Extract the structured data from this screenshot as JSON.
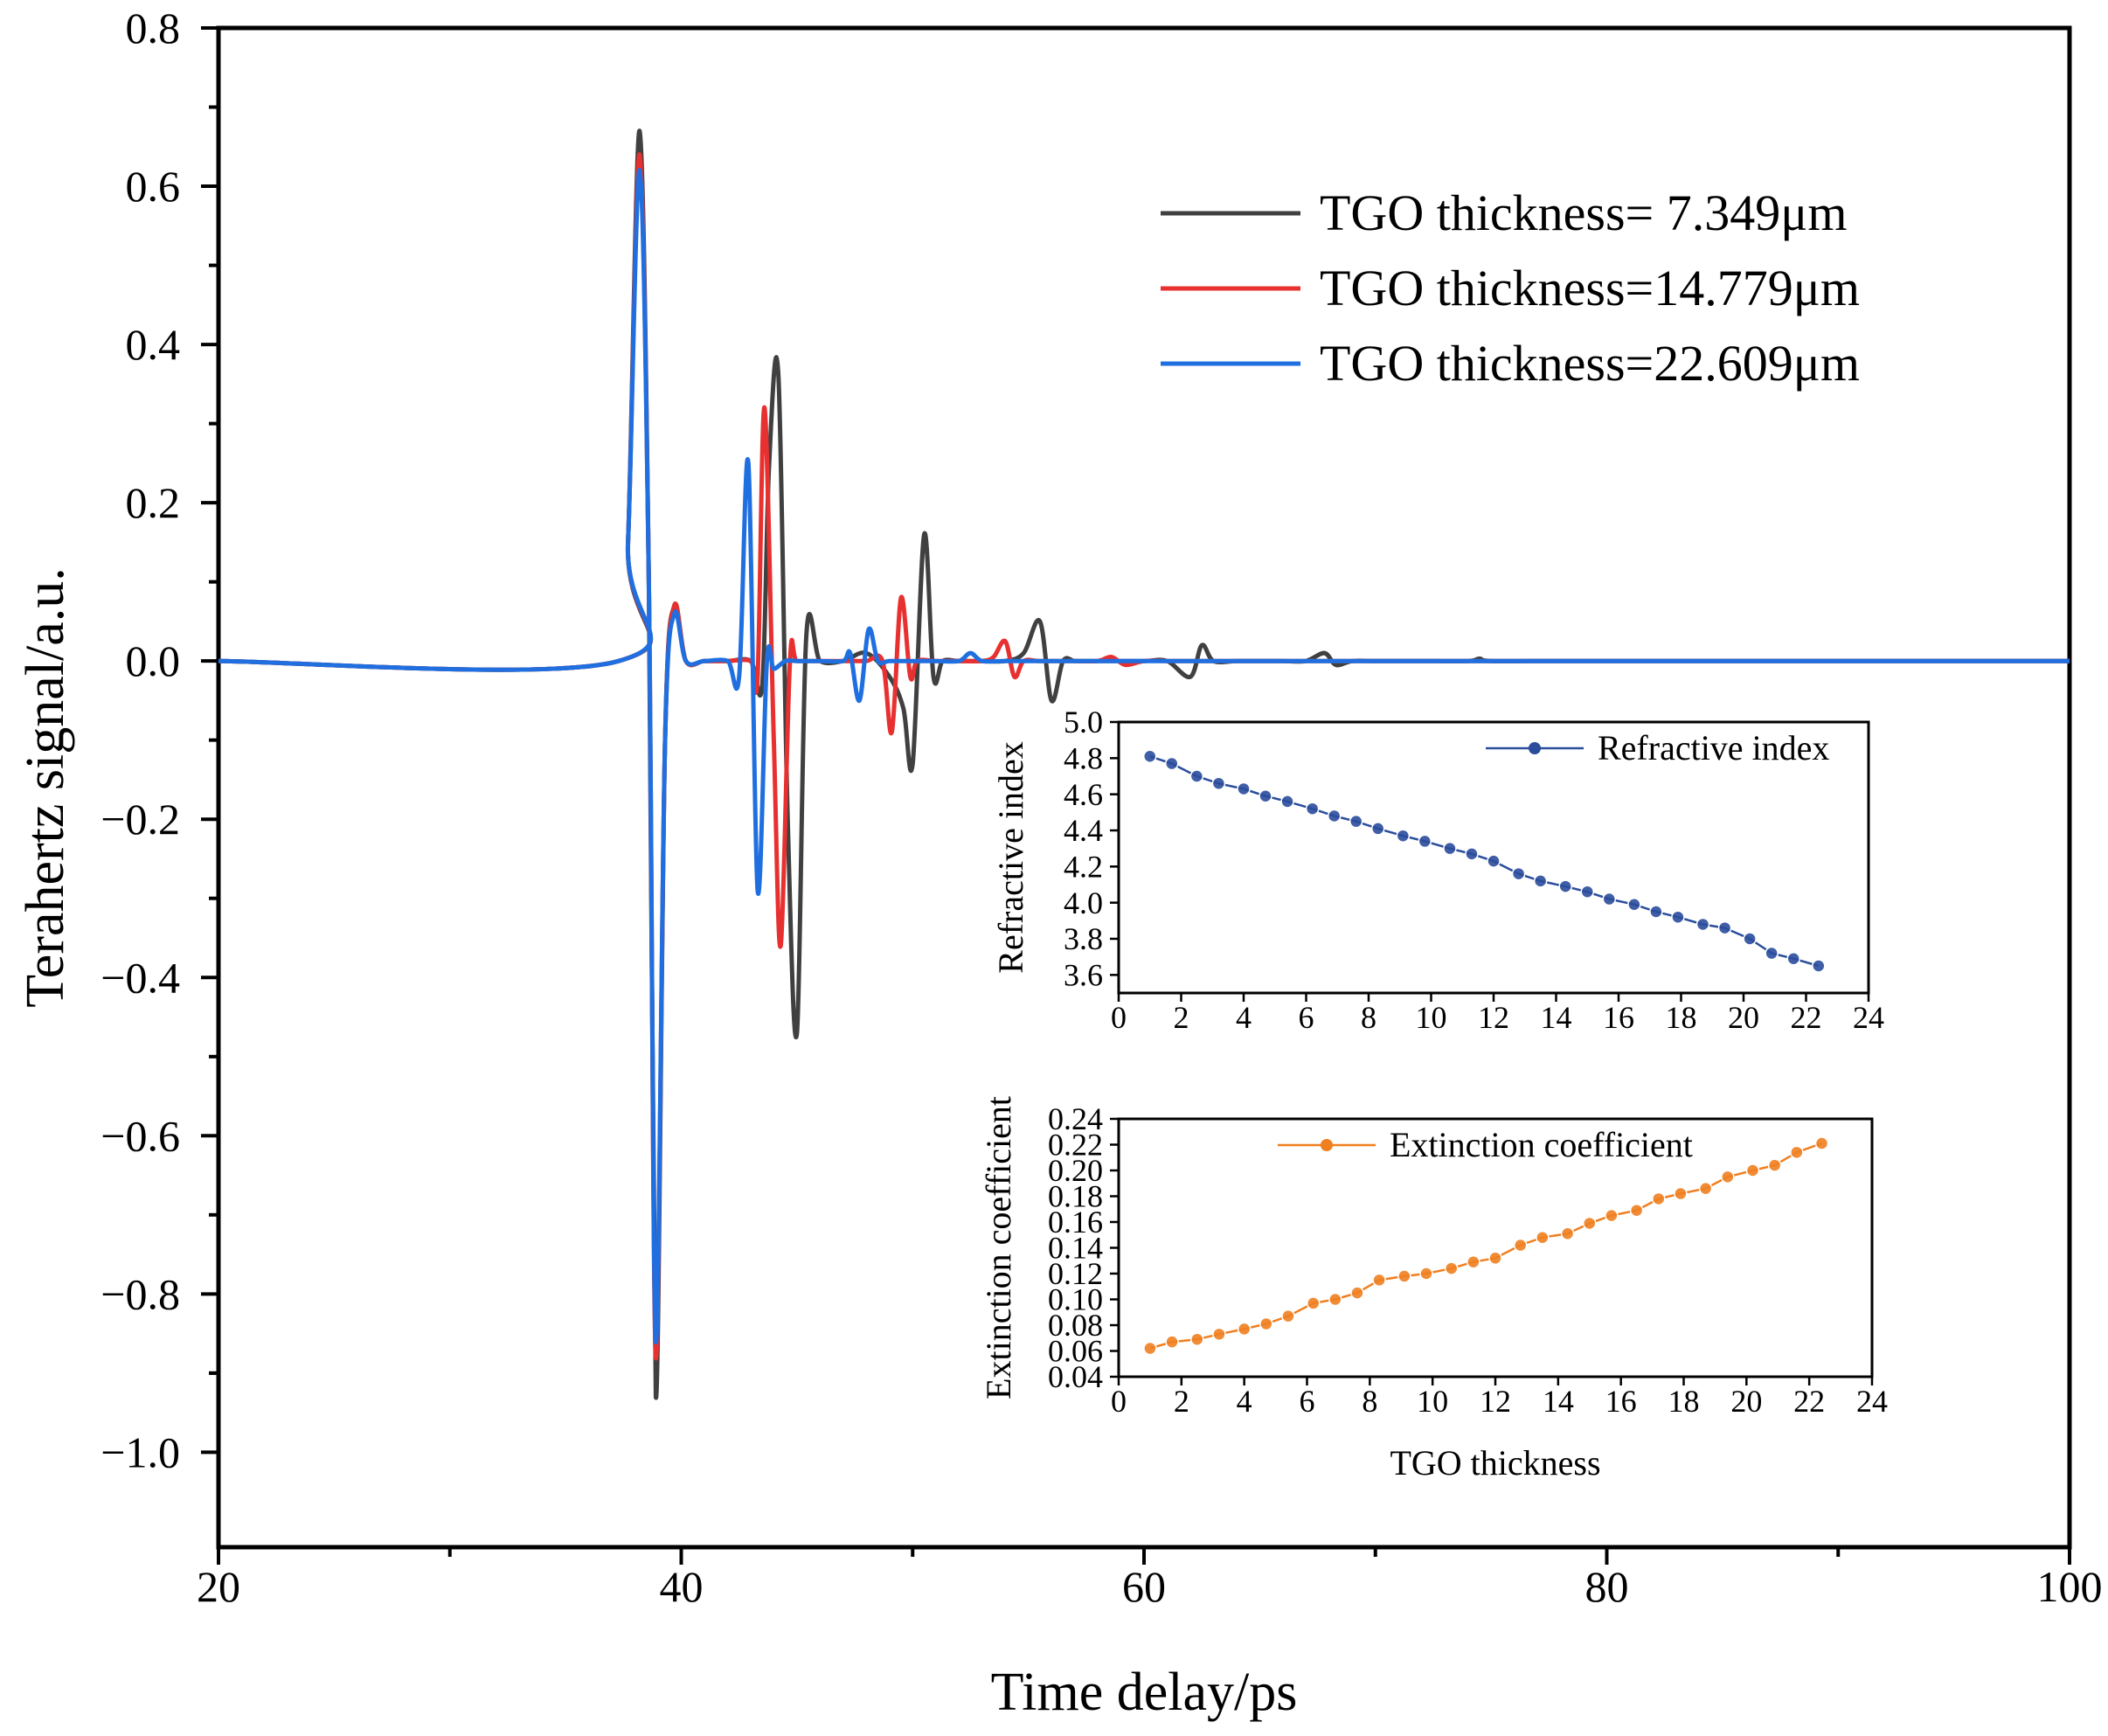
{
  "chart_data": [
    {
      "type": "line",
      "title": "",
      "xlabel": "Time delay/ps",
      "ylabel": "Terahertz signal/a.u.",
      "xlim": [
        20,
        100
      ],
      "ylim": [
        -1.12,
        0.8
      ],
      "x_ticks": [
        20,
        40,
        60,
        80,
        100
      ],
      "y_ticks": [
        0.8,
        0.6,
        0.4,
        0.2,
        0.0,
        -0.2,
        -0.4,
        -0.6,
        -0.8,
        -1.0
      ],
      "y_tick_labels": [
        "0.8",
        "0.6",
        "0.4",
        "0.2",
        "0.0",
        "−0.2",
        "−0.4",
        "−0.6",
        "−0.8",
        "−1.0"
      ],
      "grid": false,
      "legend_position": "top-right",
      "series": [
        {
          "name": "TGO thickness=  7.349μm",
          "color": "#404040",
          "x": [
            20,
            37.3,
            37.7,
            38.2,
            38.6,
            38.9,
            39.3,
            39.7,
            40.2,
            41.0,
            42.0,
            43.0,
            43.5,
            43.8,
            44.2,
            44.6,
            45.0,
            45.4,
            46.0,
            47.0,
            48.0,
            49.0,
            49.6,
            50.0,
            50.5,
            50.9,
            51.3,
            52.0,
            53.0,
            54.0,
            54.8,
            55.5,
            56.0,
            56.5,
            57.0,
            57.6,
            58.5,
            60.0,
            61.0,
            62.0,
            62.5,
            63.0,
            64.0,
            65.0,
            66.0,
            67.0,
            67.8,
            68.3,
            69.0,
            70.0,
            72.0,
            74.0,
            74.5,
            75.0,
            78.0,
            82.0,
            86.0,
            90.0,
            94.0,
            100
          ],
          "y": [
            0.0,
            0.0,
            0.15,
            0.67,
            0.1,
            -0.93,
            -0.1,
            0.07,
            0.0,
            0.0,
            0.0,
            0.0,
            -0.03,
            0.25,
            0.36,
            -0.2,
            -0.47,
            0.03,
            0.0,
            0.0,
            0.01,
            -0.02,
            -0.06,
            -0.13,
            0.16,
            -0.02,
            0.0,
            0.0,
            0.0,
            0.0,
            0.01,
            0.05,
            -0.05,
            0.0,
            0.0,
            0.0,
            0.0,
            0.0,
            0.0,
            -0.02,
            0.02,
            0.0,
            0.0,
            0.0,
            0.0,
            0.0,
            0.01,
            -0.005,
            0.0,
            0.0,
            0.0,
            0.0,
            0.003,
            0.0,
            0.0,
            0.0,
            0.0,
            0.0,
            0.0,
            0.0
          ]
        },
        {
          "name": "TGO thickness=14.779μm",
          "color": "#e83030",
          "x": [
            20,
            37.3,
            37.7,
            38.2,
            38.6,
            38.9,
            39.3,
            39.7,
            40.2,
            41.0,
            42.0,
            43.0,
            43.3,
            43.6,
            44.0,
            44.3,
            44.7,
            45.0,
            46.0,
            47.0,
            48.0,
            48.7,
            49.1,
            49.5,
            49.9,
            50.2,
            51.0,
            52.0,
            53.0,
            53.5,
            54.0,
            54.4,
            54.8,
            55.5,
            57.0,
            58.0,
            58.6,
            59.2,
            60.0,
            61.0,
            62.0,
            65.0,
            70.0,
            80.0,
            90.0,
            100
          ],
          "y": [
            0.0,
            0.0,
            0.15,
            0.64,
            0.1,
            -0.88,
            -0.1,
            0.07,
            0.0,
            0.0,
            0.0,
            0.0,
            -0.02,
            0.32,
            -0.1,
            -0.36,
            0.0,
            0.0,
            0.0,
            0.0,
            0.0,
            0.0,
            -0.09,
            0.08,
            -0.02,
            0.0,
            0.0,
            0.0,
            0.0,
            0.005,
            0.025,
            -0.02,
            0.0,
            0.0,
            0.0,
            0.0,
            0.005,
            -0.005,
            0.0,
            0.0,
            0.0,
            0.0,
            0.0,
            0.0,
            0.0,
            0.0
          ]
        },
        {
          "name": "TGO thickness=22.609μm",
          "color": "#1f6fe0",
          "x": [
            20,
            37.3,
            37.7,
            38.2,
            38.6,
            38.9,
            39.3,
            39.7,
            40.2,
            41.0,
            42.0,
            42.5,
            42.9,
            43.3,
            43.7,
            44.0,
            44.5,
            45.0,
            46.0,
            47.0,
            47.3,
            47.7,
            48.1,
            48.5,
            49.0,
            50.0,
            51.0,
            52.0,
            52.5,
            53.0,
            54.0,
            56.0,
            58.0,
            60.0,
            65.0,
            70.0,
            80.0,
            90.0,
            100
          ],
          "y": [
            0.0,
            0.0,
            0.15,
            0.62,
            0.1,
            -0.86,
            -0.1,
            0.06,
            0.0,
            0.0,
            0.0,
            -0.02,
            0.25,
            -0.29,
            0.0,
            -0.01,
            0.0,
            0.0,
            0.0,
            0.0,
            0.01,
            -0.05,
            0.04,
            0.0,
            0.0,
            0.0,
            0.0,
            0.0,
            0.01,
            0.0,
            0.0,
            0.0,
            0.0,
            0.0,
            0.0,
            0.0,
            0.0,
            0.0,
            0.0
          ]
        }
      ]
    },
    {
      "type": "line",
      "title": "",
      "xlabel": "",
      "ylabel": "Refractive index",
      "xlim": [
        0,
        24
      ],
      "ylim": [
        3.5,
        5.0
      ],
      "x_ticks": [
        0,
        2,
        4,
        6,
        8,
        10,
        12,
        14,
        16,
        18,
        20,
        22,
        24
      ],
      "y_ticks": [
        3.6,
        3.8,
        4.0,
        4.2,
        4.4,
        4.6,
        4.8,
        5.0
      ],
      "y_tick_labels": [
        "3.6",
        "3.8",
        "4.0",
        "4.2",
        "4.4",
        "4.6",
        "4.8",
        "5.0"
      ],
      "legend_position": "top-right",
      "series": [
        {
          "name": "Refractive index",
          "color": "#2a4d9c",
          "x": [
            1.0,
            1.7,
            2.5,
            3.2,
            4.0,
            4.7,
            5.4,
            6.2,
            6.9,
            7.6,
            8.3,
            9.1,
            9.8,
            10.6,
            11.3,
            12.0,
            12.8,
            13.5,
            14.3,
            15.0,
            15.7,
            16.5,
            17.2,
            17.9,
            18.7,
            19.4,
            20.2,
            20.9,
            21.6,
            22.4
          ],
          "y": [
            4.81,
            4.77,
            4.7,
            4.66,
            4.63,
            4.59,
            4.56,
            4.52,
            4.48,
            4.45,
            4.41,
            4.37,
            4.34,
            4.3,
            4.27,
            4.23,
            4.16,
            4.12,
            4.09,
            4.06,
            4.02,
            3.99,
            3.95,
            3.92,
            3.88,
            3.86,
            3.8,
            3.72,
            3.69,
            3.65
          ]
        }
      ]
    },
    {
      "type": "line",
      "title": "",
      "xlabel": "TGO thickness",
      "ylabel": "Extinction coefficient",
      "xlim": [
        0,
        24
      ],
      "ylim": [
        0.04,
        0.24
      ],
      "x_ticks": [
        0,
        2,
        4,
        6,
        8,
        10,
        12,
        14,
        16,
        18,
        20,
        22,
        24
      ],
      "y_ticks": [
        0.04,
        0.06,
        0.08,
        0.1,
        0.12,
        0.14,
        0.16,
        0.18,
        0.2,
        0.22,
        0.24
      ],
      "y_tick_labels": [
        "0.04",
        "0.06",
        "0.08",
        "0.10",
        "0.12",
        "0.14",
        "0.16",
        "0.18",
        "0.20",
        "0.22",
        "0.24"
      ],
      "legend_position": "top-center",
      "series": [
        {
          "name": "Extinction coefficient",
          "color": "#f07f20",
          "x": [
            1.0,
            1.7,
            2.5,
            3.2,
            4.0,
            4.7,
            5.4,
            6.2,
            6.9,
            7.6,
            8.3,
            9.1,
            9.8,
            10.6,
            11.3,
            12.0,
            12.8,
            13.5,
            14.3,
            15.0,
            15.7,
            16.5,
            17.2,
            17.9,
            18.7,
            19.4,
            20.2,
            20.9,
            21.6,
            22.4
          ],
          "y": [
            0.062,
            0.067,
            0.069,
            0.073,
            0.077,
            0.081,
            0.087,
            0.097,
            0.1,
            0.105,
            0.115,
            0.118,
            0.12,
            0.124,
            0.129,
            0.132,
            0.142,
            0.148,
            0.151,
            0.159,
            0.165,
            0.169,
            0.178,
            0.182,
            0.186,
            0.195,
            0.2,
            0.204,
            0.214,
            0.221
          ]
        }
      ]
    }
  ]
}
